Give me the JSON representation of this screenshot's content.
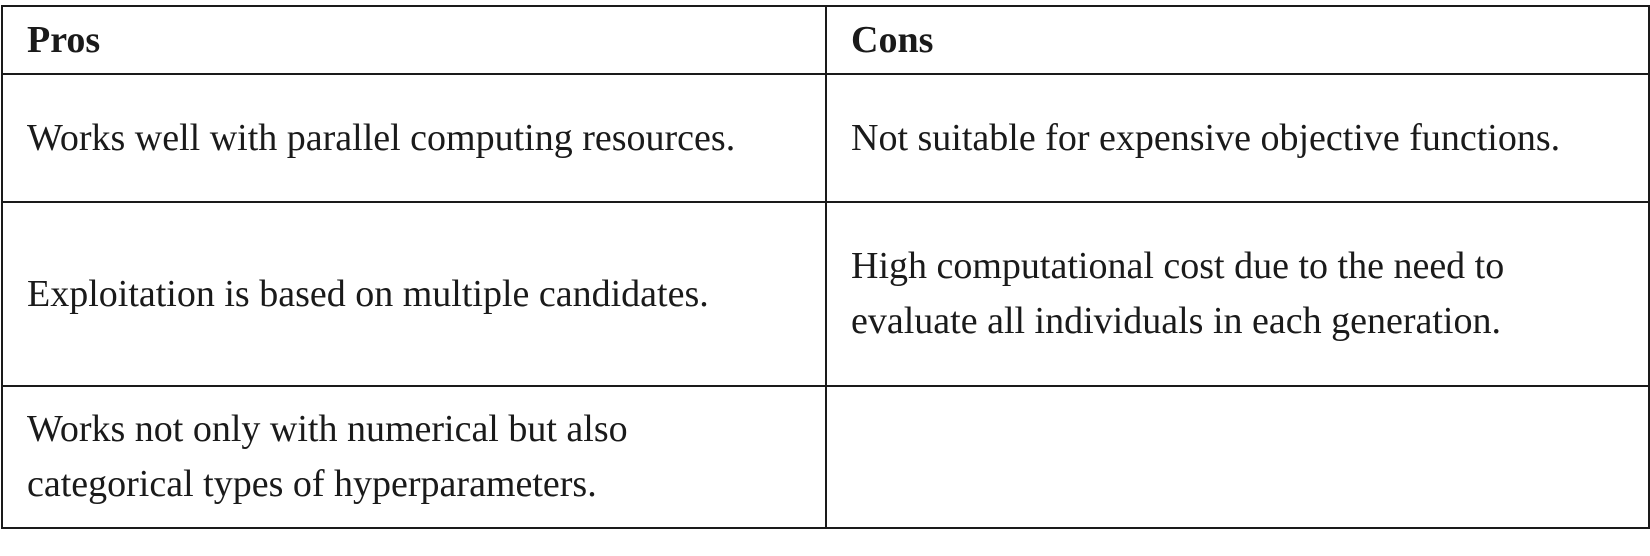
{
  "table": {
    "headers": [
      "Pros",
      "Cons"
    ],
    "rows": [
      [
        "Works well with parallel computing resources.",
        "Not suitable for expensive objective functions."
      ],
      [
        "Exploitation is based on multiple candidates.",
        "High computational cost due to the need to evaluate all individuals in each generation."
      ],
      [
        "Works not only with numerical but also categorical types of hyperparameters.",
        ""
      ]
    ]
  }
}
